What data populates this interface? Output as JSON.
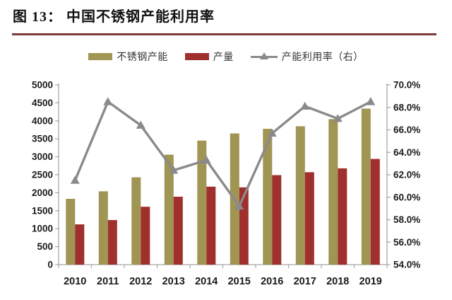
{
  "page": {
    "title": "图 13： 中国不锈钢产能利用率"
  },
  "chart_data": {
    "type": "bar",
    "subtype": "bar+line combo, dual axis",
    "title": "中国不锈钢产能利用率",
    "categories": [
      "2010",
      "2011",
      "2012",
      "2013",
      "2014",
      "2015",
      "2016",
      "2017",
      "2018",
      "2019"
    ],
    "series": [
      {
        "name": "不锈钢产能",
        "type": "bar",
        "axis": "left",
        "color": "#a09552",
        "values": [
          1830,
          2040,
          2430,
          3060,
          3450,
          3650,
          3780,
          3850,
          4050,
          4340
        ]
      },
      {
        "name": "产量",
        "type": "bar",
        "axis": "left",
        "color": "#a0302d",
        "values": [
          1120,
          1240,
          1610,
          1890,
          2170,
          2150,
          2490,
          2570,
          2680,
          2940
        ]
      },
      {
        "name": "产能利用率（右）",
        "type": "line",
        "axis": "right",
        "color": "#8a8a8a",
        "values": [
          61.5,
          68.5,
          66.4,
          62.4,
          63.3,
          59.2,
          65.7,
          68.1,
          67.0,
          68.5
        ]
      }
    ],
    "left_axis": {
      "min": 0,
      "max": 5000,
      "step": 500,
      "ticks": [
        "0",
        "500",
        "1000",
        "1500",
        "2000",
        "2500",
        "3000",
        "3500",
        "4000",
        "4500",
        "5000"
      ]
    },
    "right_axis": {
      "min": 54,
      "max": 70,
      "step": 2,
      "ticks": [
        "54.0%",
        "56.0%",
        "58.0%",
        "60.0%",
        "62.0%",
        "64.0%",
        "66.0%",
        "68.0%",
        "70.0%"
      ]
    },
    "legend_position": "top",
    "grid": false
  },
  "colors": {
    "underline": "#7d3a3a",
    "axis": "#a8a8a8",
    "text": "#1a1a1a"
  }
}
